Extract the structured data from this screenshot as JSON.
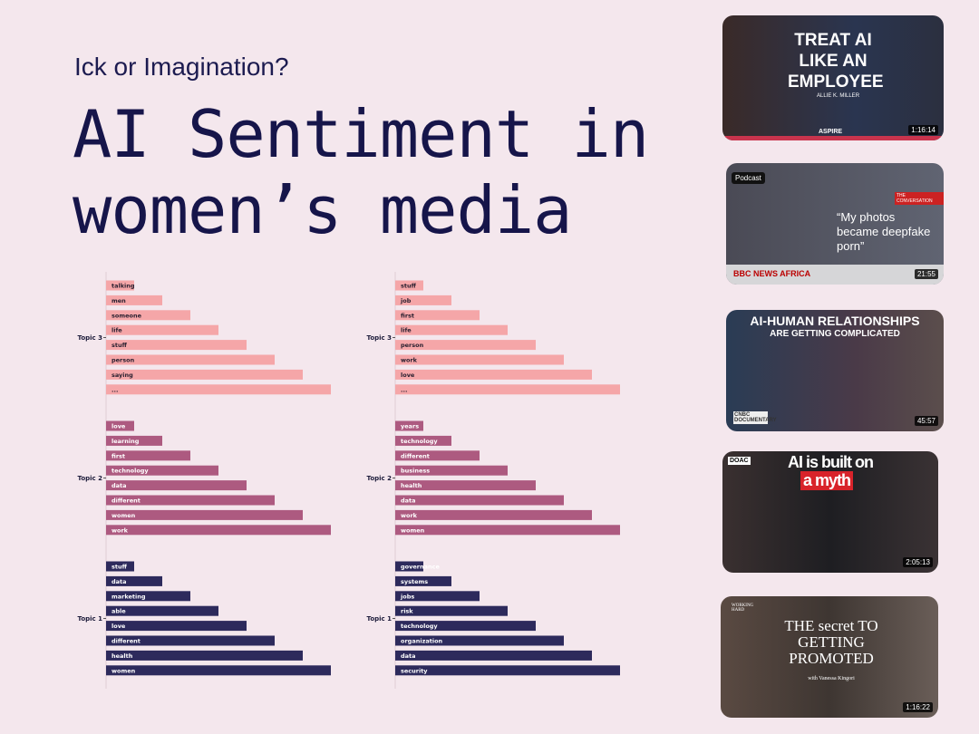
{
  "header": {
    "subtitle": "Ick or Imagination?",
    "title_line1": "AI Sentiment in",
    "title_line2": "women’s media"
  },
  "chart_data": [
    {
      "type": "bar",
      "orientation": "horizontal",
      "series": [
        {
          "name": "Topic 3",
          "color": "#f5a6a8",
          "categories": [
            "talking",
            "men",
            "someone",
            "life",
            "stuff",
            "person",
            "saying",
            "..."
          ],
          "values": [
            1,
            2,
            3,
            4,
            5,
            6,
            7,
            8
          ]
        },
        {
          "name": "Topic 2",
          "color": "#ad5a80",
          "categories": [
            "love",
            "learning",
            "first",
            "technology",
            "data",
            "different",
            "women",
            "work"
          ],
          "values": [
            1,
            2,
            3,
            4,
            5,
            6,
            7,
            8
          ]
        },
        {
          "name": "Topic 1",
          "color": "#2d2a5c",
          "categories": [
            "stuff",
            "data",
            "marketing",
            "able",
            "love",
            "different",
            "health",
            "women"
          ],
          "values": [
            1,
            2,
            3,
            4,
            5,
            6,
            7,
            8
          ]
        }
      ]
    },
    {
      "type": "bar",
      "orientation": "horizontal",
      "series": [
        {
          "name": "Topic 3",
          "color": "#f5a6a8",
          "categories": [
            "stuff",
            "job",
            "first",
            "life",
            "person",
            "work",
            "love",
            "..."
          ],
          "values": [
            1,
            2,
            3,
            4,
            5,
            6,
            7,
            8
          ]
        },
        {
          "name": "Topic 2",
          "color": "#ad5a80",
          "categories": [
            "years",
            "technology",
            "different",
            "business",
            "health",
            "data",
            "work",
            "women"
          ],
          "values": [
            1,
            2,
            3,
            4,
            5,
            6,
            7,
            8
          ]
        },
        {
          "name": "Topic 1",
          "color": "#2d2a5c",
          "categories": [
            "governance",
            "systems",
            "jobs",
            "risk",
            "technology",
            "organization",
            "data",
            "security"
          ],
          "values": [
            1,
            2,
            3,
            4,
            5,
            6,
            7,
            8
          ]
        }
      ]
    }
  ],
  "thumbnails": [
    {
      "headline": "TREAT AI LIKE AN EMPLOYEE",
      "name": "ALLIE K. MILLER",
      "brand": "ASPIRE",
      "duration": "1:16:14"
    },
    {
      "tag": "Podcast",
      "brand2": "THE CONVERSATION",
      "headline": "“My photos became deepfake porn”",
      "brand": "BBC NEWS AFRICA",
      "duration": "21:55"
    },
    {
      "headline": "AI-HUMAN RELATIONSHIPS",
      "subhead": "ARE GETTING COMPLICATED",
      "brand": "CNBC DOCUMENTARY",
      "duration": "45:57"
    },
    {
      "brand": "DOAC",
      "headline": "AI is built on",
      "highlight": "a myth",
      "duration": "2:05:13"
    },
    {
      "brand": "WORKING HARD",
      "headline": "THE secret TO GETTING PROMOTED",
      "name": "with Vanessa Kingori",
      "duration": "1:16:22"
    }
  ]
}
